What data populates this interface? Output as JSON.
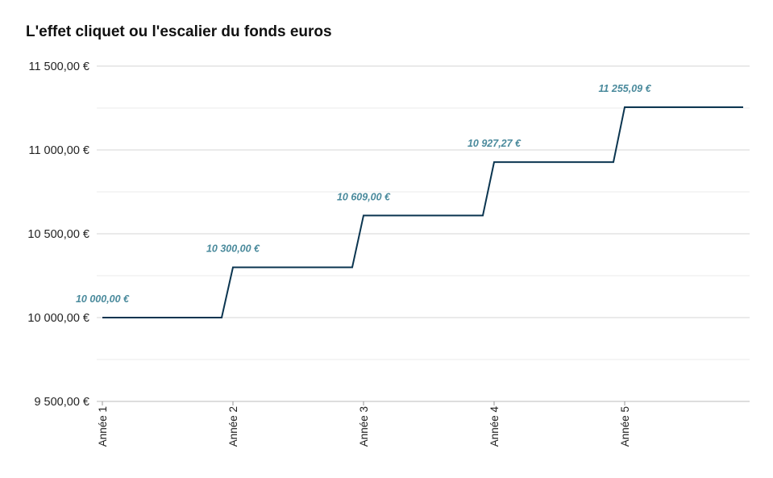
{
  "chart_data": {
    "type": "line",
    "title": "L'effet cliquet ou l'escalier du fonds euros",
    "xlabel": "",
    "ylabel": "",
    "ylim": [
      9500,
      11500
    ],
    "y_ticks": [
      9500,
      10000,
      10500,
      11000,
      11500
    ],
    "y_tick_labels": [
      "9 500,00 €",
      "10 000,00 €",
      "10 500,00 €",
      "11 000,00 €",
      "11 500,00 €"
    ],
    "categories": [
      "Année 1",
      "Année 2",
      "Année 3",
      "Année 4",
      "Année 5"
    ],
    "series": [
      {
        "values": [
          10000.0,
          10300.0,
          10609.0,
          10927.27,
          11255.09
        ],
        "labels": [
          "10 000,00 €",
          "10 300,00 €",
          "10 609,00 €",
          "10 927,27 €",
          "11 255,09 €"
        ]
      }
    ],
    "step_style": "staircase",
    "grid": true,
    "legend": "none",
    "colors": {
      "line": "#0b3550",
      "labels": "#4a8a9c",
      "grid": "#d9d9d9",
      "baseline": "#bbbbbb"
    }
  }
}
